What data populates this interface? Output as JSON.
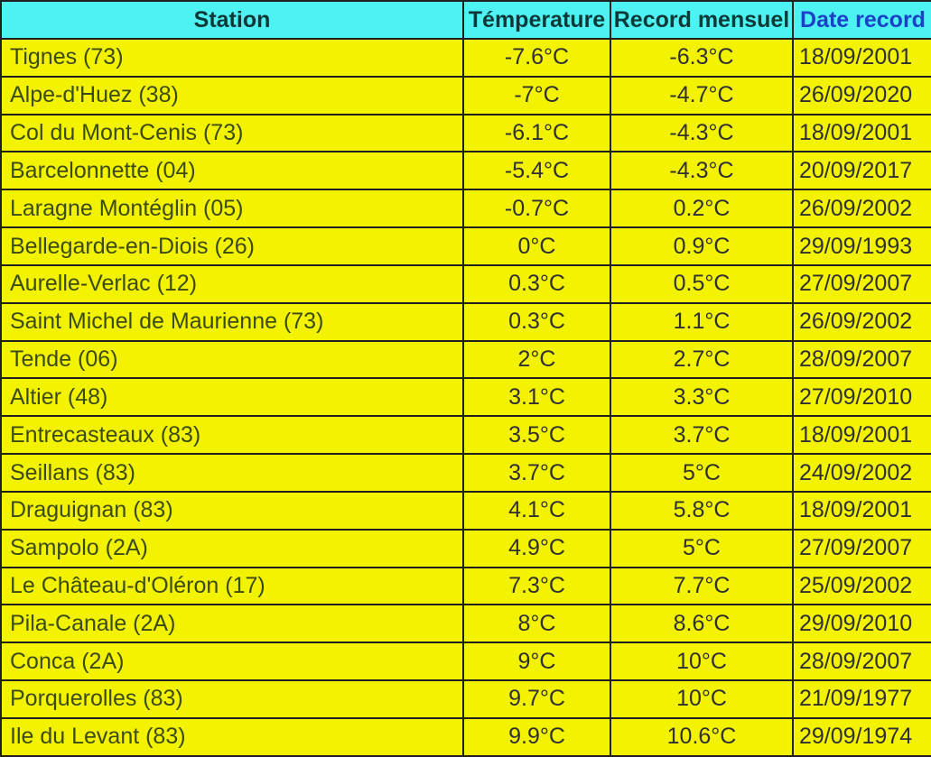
{
  "colors": {
    "header_bg": "#4df2f2",
    "row_bg": "#f2f201",
    "border": "#1f1f1f",
    "header_text": "#0d3838",
    "date_header_text": "#1b41c6",
    "station_text": "#3c4b12",
    "value_text": "#303030"
  },
  "chart_data": {
    "type": "table",
    "columns": [
      "Station",
      "Témperature",
      "Record mensuel",
      "Date record"
    ],
    "rows": [
      {
        "station": "Tignes (73)",
        "temperature": "-7.6°C",
        "record": "-6.3°C",
        "date": "18/09/2001"
      },
      {
        "station": "Alpe-d'Huez (38)",
        "temperature": "-7°C",
        "record": "-4.7°C",
        "date": "26/09/2020"
      },
      {
        "station": "Col du Mont-Cenis (73)",
        "temperature": "-6.1°C",
        "record": "-4.3°C",
        "date": "18/09/2001"
      },
      {
        "station": "Barcelonnette (04)",
        "temperature": "-5.4°C",
        "record": "-4.3°C",
        "date": "20/09/2017"
      },
      {
        "station": "Laragne Montéglin (05)",
        "temperature": "-0.7°C",
        "record": "0.2°C",
        "date": "26/09/2002"
      },
      {
        "station": "Bellegarde-en-Diois (26)",
        "temperature": "0°C",
        "record": "0.9°C",
        "date": "29/09/1993"
      },
      {
        "station": "Aurelle-Verlac (12)",
        "temperature": "0.3°C",
        "record": "0.5°C",
        "date": "27/09/2007"
      },
      {
        "station": "Saint Michel de Maurienne (73)",
        "temperature": "0.3°C",
        "record": "1.1°C",
        "date": "26/09/2002"
      },
      {
        "station": "Tende (06)",
        "temperature": "2°C",
        "record": "2.7°C",
        "date": "28/09/2007"
      },
      {
        "station": "Altier (48)",
        "temperature": "3.1°C",
        "record": "3.3°C",
        "date": "27/09/2010"
      },
      {
        "station": "Entrecasteaux (83)",
        "temperature": "3.5°C",
        "record": "3.7°C",
        "date": "18/09/2001"
      },
      {
        "station": "Seillans (83)",
        "temperature": "3.7°C",
        "record": "5°C",
        "date": "24/09/2002"
      },
      {
        "station": "Draguignan (83)",
        "temperature": "4.1°C",
        "record": "5.8°C",
        "date": "18/09/2001"
      },
      {
        "station": "Sampolo (2A)",
        "temperature": "4.9°C",
        "record": "5°C",
        "date": "27/09/2007"
      },
      {
        "station": "Le Château-d'Oléron (17)",
        "temperature": "7.3°C",
        "record": "7.7°C",
        "date": "25/09/2002"
      },
      {
        "station": "Pila-Canale (2A)",
        "temperature": "8°C",
        "record": "8.6°C",
        "date": "29/09/2010"
      },
      {
        "station": "Conca (2A)",
        "temperature": "9°C",
        "record": "10°C",
        "date": "28/09/2007"
      },
      {
        "station": "Porquerolles (83)",
        "temperature": "9.7°C",
        "record": "10°C",
        "date": "21/09/1977"
      },
      {
        "station": "Ile du Levant (83)",
        "temperature": "9.9°C",
        "record": "10.6°C",
        "date": "29/09/1974"
      }
    ]
  },
  "table": {
    "columns": [
      {
        "label": "Station"
      },
      {
        "label": "Témperature"
      },
      {
        "label": "Record mensuel"
      },
      {
        "label": "Date record"
      }
    ]
  }
}
